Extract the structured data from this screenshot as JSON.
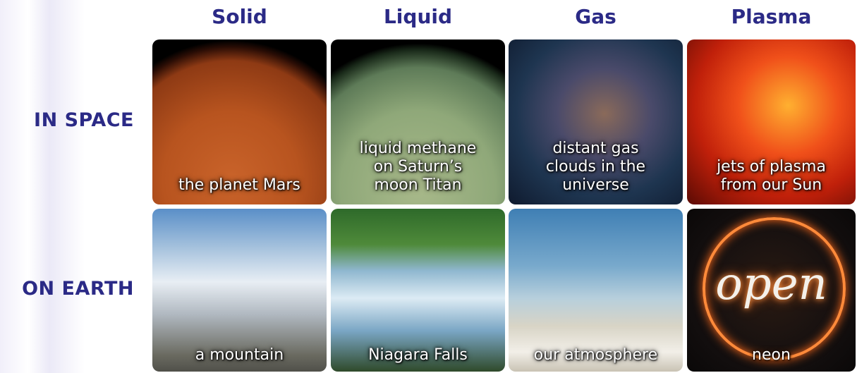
{
  "columns": [
    "Solid",
    "Liquid",
    "Gas",
    "Plasma"
  ],
  "rows": [
    {
      "label": "IN SPACE",
      "cells": [
        {
          "caption_lines": [
            "the planet Mars"
          ]
        },
        {
          "caption_lines": [
            "liquid methane",
            "on Saturn’s",
            "moon Titan"
          ]
        },
        {
          "caption_lines": [
            "distant gas",
            "clouds in the",
            "universe"
          ]
        },
        {
          "caption_lines": [
            "jets of plasma",
            "from our Sun"
          ]
        }
      ]
    },
    {
      "label": "ON EARTH",
      "cells": [
        {
          "caption_lines": [
            "a mountain"
          ]
        },
        {
          "caption_lines": [
            "Niagara Falls"
          ]
        },
        {
          "caption_lines": [
            "our atmosphere"
          ]
        },
        {
          "caption_lines": [
            "neon"
          ],
          "sign_text": "open"
        }
      ]
    }
  ]
}
